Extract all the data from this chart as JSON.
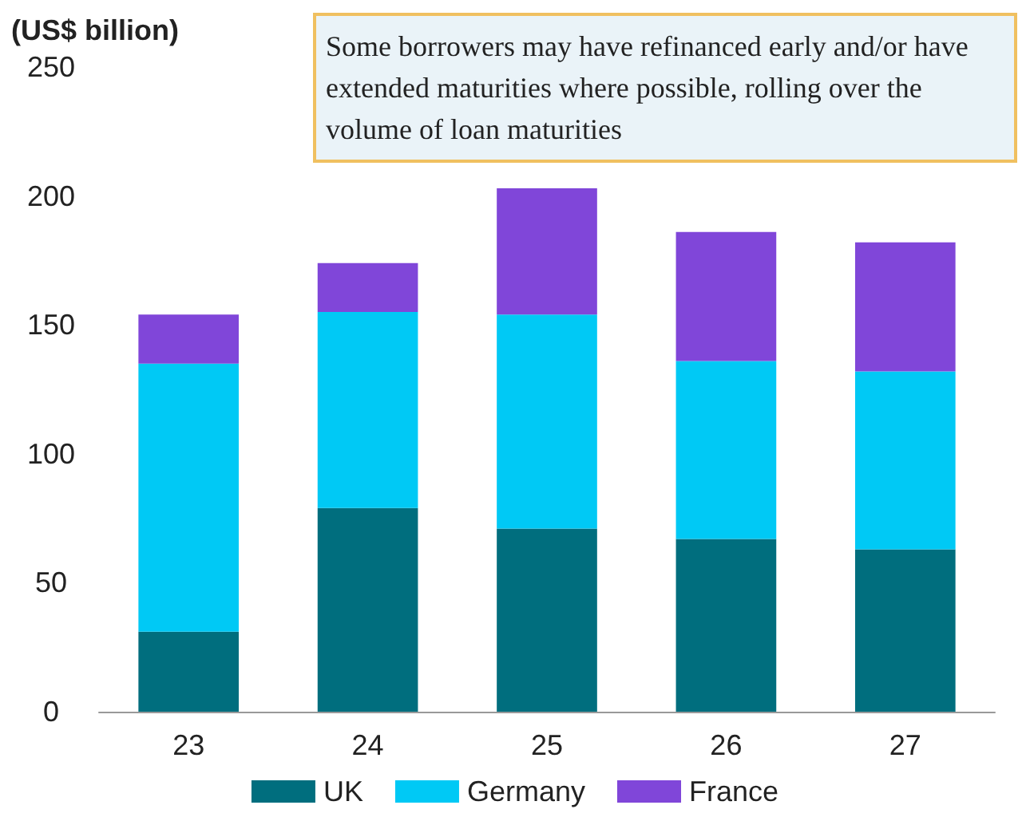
{
  "chart_data": {
    "type": "bar",
    "stacked": true,
    "ylabel": "(US$ billion)",
    "categories": [
      "23",
      "24",
      "25",
      "26",
      "27"
    ],
    "series": [
      {
        "name": "UK",
        "color": "#006e7e",
        "values": [
          31,
          79,
          71,
          67,
          63
        ]
      },
      {
        "name": "Germany",
        "color": "#00c9f5",
        "values": [
          104,
          76,
          83,
          69,
          69
        ]
      },
      {
        "name": "France",
        "color": "#8046d9",
        "values": [
          19,
          19,
          49,
          50,
          50
        ]
      }
    ],
    "ylim": [
      0,
      250
    ],
    "yticks": [
      0,
      50,
      100,
      150,
      200,
      250
    ],
    "grid": false,
    "legend": "bottom",
    "annotations": [
      "Some borrowers may have refinanced early and/or have extended maturities where possible, rolling over the volume of loan maturities"
    ]
  }
}
